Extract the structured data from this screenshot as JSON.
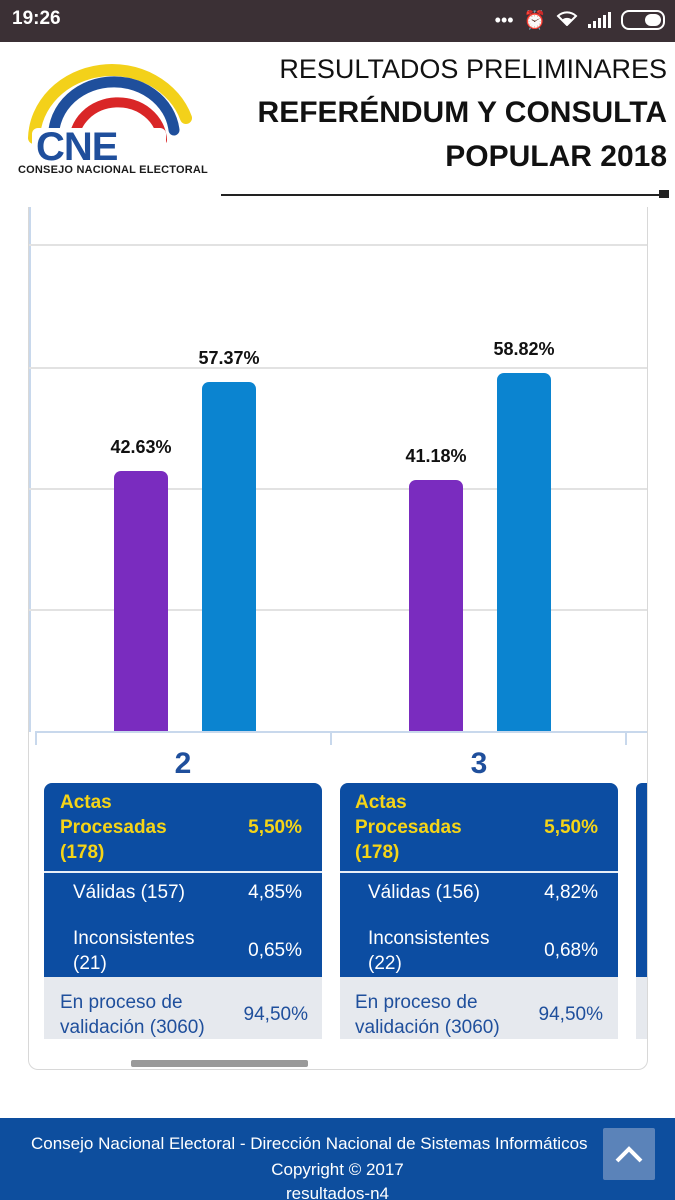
{
  "status_bar": {
    "time": "19:26",
    "icons": [
      "more-icon",
      "alarm-icon",
      "wifi-icon",
      "signal-icon",
      "battery-icon"
    ]
  },
  "header": {
    "logo_text": "CNE",
    "logo_caption": "CONSEJO NACIONAL ELECTORAL",
    "line1": "RESULTADOS PRELIMINARES",
    "line2": "REFERÉNDUM Y CONSULTA",
    "line3": "POPULAR 2018"
  },
  "chart_data": {
    "type": "bar",
    "categories": [
      "2",
      "3"
    ],
    "series": [
      {
        "values": [
          42.63,
          41.18
        ],
        "color": "#7a2cbf"
      },
      {
        "values": [
          57.37,
          58.82
        ],
        "color": "#0b84d0"
      }
    ],
    "value_labels": [
      [
        "42.63%",
        "41.18%"
      ],
      [
        "57.37%",
        "58.82%"
      ]
    ],
    "ylim": [
      0,
      80
    ],
    "grid": true
  },
  "panels": [
    {
      "actas_label": "Actas Procesadas (178)",
      "actas_line1": "Actas",
      "actas_line2": "Procesadas",
      "actas_line3": "(178)",
      "actas_pct": "5,50%",
      "validas_label": "Válidas (157)",
      "validas_pct": "4,85%",
      "incons_line1": "Inconsistentes",
      "incons_line2": "(21)",
      "incons_pct": "0,65%",
      "proceso_line1": "En proceso de",
      "proceso_line2": "validación (3060)",
      "proceso_pct": "94,50%"
    },
    {
      "actas_line1": "Actas",
      "actas_line2": "Procesadas",
      "actas_line3": "(178)",
      "actas_pct": "5,50%",
      "validas_label": "Válidas (156)",
      "validas_pct": "4,82%",
      "incons_line1": "Inconsistentes",
      "incons_line2": "(22)",
      "incons_pct": "0,68%",
      "proceso_line1": "En proceso de",
      "proceso_line2": "validación (3060)",
      "proceso_pct": "94,50%"
    }
  ],
  "footer": {
    "line1": "Consejo Nacional Electoral - Dirección Nacional de Sistemas Informáticos",
    "line2": "Copyright © 2017",
    "line3": "resultados-n4"
  },
  "colors": {
    "brand_blue": "#0c4da2",
    "accent_yellow": "#f5d417",
    "bar_purple": "#7a2cbf",
    "bar_blue": "#0b84d0"
  }
}
